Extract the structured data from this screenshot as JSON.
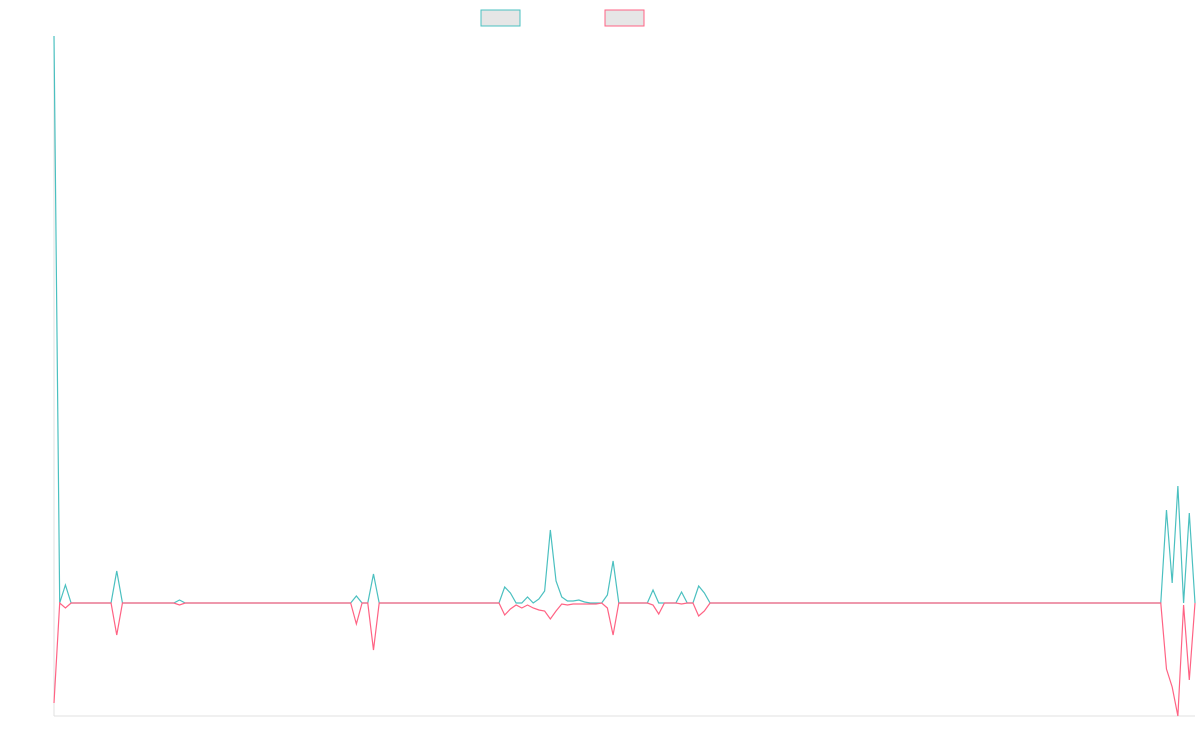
{
  "chart_data": {
    "type": "line",
    "ylim": [
      -113,
      567
    ],
    "series": [
      {
        "color": "#4bc0c0",
        "values": [
          567,
          0,
          18,
          0,
          0,
          0,
          0,
          0,
          0,
          0,
          0,
          32,
          0,
          0,
          0,
          0,
          0,
          0,
          0,
          0,
          0,
          0,
          3,
          0,
          0,
          0,
          0,
          0,
          0,
          0,
          0,
          0,
          0,
          0,
          0,
          0,
          0,
          0,
          0,
          0,
          0,
          0,
          0,
          0,
          0,
          0,
          0,
          0,
          0,
          0,
          0,
          0,
          0,
          7,
          0,
          0,
          29,
          0,
          0,
          0,
          0,
          0,
          0,
          0,
          0,
          0,
          0,
          0,
          0,
          0,
          0,
          0,
          0,
          0,
          0,
          0,
          0,
          0,
          0,
          16,
          10,
          0,
          0,
          6,
          0,
          4,
          12,
          73,
          22,
          6,
          2,
          2,
          3,
          1,
          0,
          0,
          0,
          8,
          42,
          0,
          0,
          0,
          0,
          0,
          0,
          13,
          0,
          0,
          0,
          0,
          11,
          0,
          0,
          17,
          10,
          0,
          0,
          0,
          0,
          0,
          0,
          0,
          0,
          0,
          0,
          0,
          0,
          0,
          0,
          0,
          0,
          0,
          0,
          0,
          0,
          0,
          0,
          0,
          0,
          0,
          0,
          0,
          0,
          0,
          0,
          0,
          0,
          0,
          0,
          0,
          0,
          0,
          0,
          0,
          0,
          0,
          0,
          0,
          0,
          0,
          0,
          0,
          0,
          0,
          0,
          0,
          0,
          0,
          0,
          0,
          0,
          0,
          0,
          0,
          0,
          0,
          0,
          0,
          0,
          0,
          0,
          0,
          0,
          0,
          0,
          0,
          0,
          0,
          0,
          0,
          0,
          0,
          0,
          0,
          0,
          93,
          20,
          117,
          0,
          90,
          0
        ]
      },
      {
        "color": "#ff6384",
        "values": [
          -100,
          0,
          -5,
          0,
          0,
          0,
          0,
          0,
          0,
          0,
          0,
          -32,
          0,
          0,
          0,
          0,
          0,
          0,
          0,
          0,
          0,
          0,
          -2,
          0,
          0,
          0,
          0,
          0,
          0,
          0,
          0,
          0,
          0,
          0,
          0,
          0,
          0,
          0,
          0,
          0,
          0,
          0,
          0,
          0,
          0,
          0,
          0,
          0,
          0,
          0,
          0,
          0,
          0,
          -21,
          0,
          0,
          -47,
          0,
          0,
          0,
          0,
          0,
          0,
          0,
          0,
          0,
          0,
          0,
          0,
          0,
          0,
          0,
          0,
          0,
          0,
          0,
          0,
          0,
          0,
          -12,
          -6,
          -2,
          -5,
          -2,
          -5,
          -7,
          -8,
          -16,
          -8,
          -1,
          -2,
          -1,
          -1,
          -1,
          -1,
          -1,
          0,
          -5,
          -32,
          0,
          0,
          0,
          0,
          0,
          0,
          -2,
          -11,
          0,
          0,
          0,
          -1,
          0,
          0,
          -13,
          -8,
          0,
          0,
          0,
          0,
          0,
          0,
          0,
          0,
          0,
          0,
          0,
          0,
          0,
          0,
          0,
          0,
          0,
          0,
          0,
          0,
          0,
          0,
          0,
          0,
          0,
          0,
          0,
          0,
          0,
          0,
          0,
          0,
          0,
          0,
          0,
          0,
          0,
          0,
          0,
          0,
          0,
          0,
          0,
          0,
          0,
          0,
          0,
          0,
          0,
          0,
          0,
          0,
          0,
          0,
          0,
          0,
          0,
          0,
          0,
          0,
          0,
          0,
          0,
          0,
          0,
          0,
          0,
          0,
          0,
          0,
          0,
          0,
          0,
          0,
          0,
          0,
          0,
          0,
          0,
          0,
          -66,
          -84,
          -113,
          -2,
          -77,
          0
        ]
      }
    ]
  }
}
